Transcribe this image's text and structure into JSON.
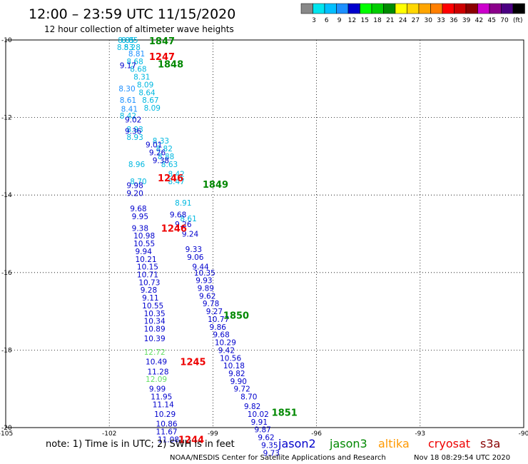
{
  "header": {
    "title": "12:00 – 23:59 UTC 11/15/2020",
    "subtitle": "12 hour collection of altimeter wave heights"
  },
  "color_scale": {
    "colors": [
      "#888888",
      "#00e5ee",
      "#00bfff",
      "#1e90ff",
      "#0000cd",
      "#00ff00",
      "#00cd00",
      "#008b00",
      "#ffff00",
      "#ffd700",
      "#ffa500",
      "#ff7f00",
      "#ff0000",
      "#cd0000",
      "#8b0000",
      "#cd00cd",
      "#8b008b",
      "#4b0082",
      "#000000"
    ],
    "labels": [
      "3",
      "6",
      "9",
      "12",
      "15",
      "18",
      "21",
      "24",
      "27",
      "30",
      "33",
      "36",
      "39",
      "42",
      "45",
      "70"
    ],
    "unit": "(ft)"
  },
  "footer": {
    "note": "note: 1) Time is in UTC; 2) SWH is in feet",
    "credit": "NOAA/NESDIS Center for Satellite Applications and Research",
    "timestamp": "Nov 18 08:29:54 UTC 2020",
    "satellites": [
      {
        "name": "jason2",
        "color": "#0000cc"
      },
      {
        "name": "jason3",
        "color": "#008800"
      },
      {
        "name": "altika",
        "color": "#ff9900"
      },
      {
        "name": "cryosat",
        "color": "#ee0000"
      },
      {
        "name": "s3a",
        "color": "#880000"
      }
    ]
  },
  "chart_data": {
    "type": "scatter",
    "xlim": [
      -105,
      -90
    ],
    "ylim": [
      -20,
      -10
    ],
    "x_ticks": [
      -105,
      -102,
      -99,
      -96,
      -93,
      -90
    ],
    "x_tick_labels": [
      "-105",
      "-102",
      "-99",
      "-96",
      "-93",
      "-90"
    ],
    "y_ticks": [
      -10,
      -12,
      -14,
      -16,
      -18,
      -20
    ],
    "y_tick_labels": [
      "-10",
      "-12",
      "-14",
      "-16",
      "-18",
      "-20"
    ],
    "grid": true,
    "series": [
      {
        "color": "#00b8e0",
        "points": [
          {
            "x": -101.75,
            "y": -10.0,
            "v": "8.85"
          },
          {
            "x": -101.65,
            "y": -10.0,
            "v": "8.85"
          },
          {
            "x": -101.78,
            "y": -10.18,
            "v": "8.53"
          },
          {
            "x": -101.58,
            "y": -10.18,
            "v": "8.28"
          },
          {
            "x": -101.5,
            "y": -10.55,
            "v": "8.68"
          },
          {
            "x": -101.4,
            "y": -10.75,
            "v": "8.68"
          },
          {
            "x": -101.3,
            "y": -10.95,
            "v": "8.31"
          },
          {
            "x": -101.2,
            "y": -11.15,
            "v": "8.09"
          },
          {
            "x": -101.15,
            "y": -11.35,
            "v": "8.64"
          },
          {
            "x": -101.05,
            "y": -11.55,
            "v": "8.67"
          },
          {
            "x": -101.0,
            "y": -11.75,
            "v": "8.09"
          },
          {
            "x": -101.7,
            "y": -11.95,
            "v": "8.42"
          },
          {
            "x": -101.5,
            "y": -12.3,
            "v": "8.93"
          },
          {
            "x": -101.5,
            "y": -12.5,
            "v": "8.93"
          },
          {
            "x": -100.75,
            "y": -12.6,
            "v": "8.33"
          },
          {
            "x": -100.65,
            "y": -12.8,
            "v": "8.82"
          },
          {
            "x": -100.6,
            "y": -13.0,
            "v": "8.88"
          },
          {
            "x": -101.45,
            "y": -13.2,
            "v": "8.96"
          },
          {
            "x": -100.5,
            "y": -13.2,
            "v": "8.63"
          },
          {
            "x": -100.3,
            "y": -13.45,
            "v": "8.42"
          },
          {
            "x": -101.4,
            "y": -13.65,
            "v": "8.70"
          },
          {
            "x": -100.3,
            "y": -13.65,
            "v": "8.47"
          },
          {
            "x": -100.1,
            "y": -14.2,
            "v": "8.91"
          },
          {
            "x": -99.95,
            "y": -14.6,
            "v": "8.61"
          }
        ]
      },
      {
        "color": "#1e90ff",
        "points": [
          {
            "x": -101.45,
            "y": -10.35,
            "v": "8.81"
          },
          {
            "x": -101.73,
            "y": -11.25,
            "v": "8.30"
          },
          {
            "x": -101.7,
            "y": -11.55,
            "v": "8.61"
          },
          {
            "x": -101.66,
            "y": -11.78,
            "v": "8.41"
          }
        ]
      },
      {
        "color": "#0000cd",
        "points": [
          {
            "x": -101.7,
            "y": -10.65,
            "v": "9.17"
          },
          {
            "x": -101.55,
            "y": -12.05,
            "v": "9.02"
          },
          {
            "x": -101.55,
            "y": -12.35,
            "v": "9.36"
          },
          {
            "x": -100.95,
            "y": -12.7,
            "v": "9.01"
          },
          {
            "x": -100.85,
            "y": -12.9,
            "v": "9.26"
          },
          {
            "x": -100.75,
            "y": -13.1,
            "v": "9.38"
          },
          {
            "x": -101.5,
            "y": -13.75,
            "v": "9.98"
          },
          {
            "x": -101.5,
            "y": -13.95,
            "v": "9.20"
          },
          {
            "x": -101.4,
            "y": -14.35,
            "v": "9.68"
          },
          {
            "x": -101.35,
            "y": -14.55,
            "v": "9.95"
          },
          {
            "x": -100.25,
            "y": -14.5,
            "v": "9.68"
          },
          {
            "x": -100.1,
            "y": -14.75,
            "v": "9.26"
          },
          {
            "x": -101.35,
            "y": -14.85,
            "v": "9.38"
          },
          {
            "x": -101.3,
            "y": -15.05,
            "v": "10.98"
          },
          {
            "x": -99.9,
            "y": -15.0,
            "v": "9.24"
          },
          {
            "x": -101.3,
            "y": -15.25,
            "v": "10.55"
          },
          {
            "x": -101.25,
            "y": -15.45,
            "v": "9.94"
          },
          {
            "x": -99.8,
            "y": -15.4,
            "v": "9.33"
          },
          {
            "x": -101.25,
            "y": -15.65,
            "v": "10.21"
          },
          {
            "x": -99.75,
            "y": -15.6,
            "v": "9.06"
          },
          {
            "x": -101.2,
            "y": -15.85,
            "v": "10.15"
          },
          {
            "x": -99.6,
            "y": -15.85,
            "v": "9.44"
          },
          {
            "x": -101.2,
            "y": -16.05,
            "v": "10.71"
          },
          {
            "x": -99.55,
            "y": -16.0,
            "v": "10.35"
          },
          {
            "x": -101.15,
            "y": -16.25,
            "v": "10.73"
          },
          {
            "x": -99.5,
            "y": -16.2,
            "v": "9.93"
          },
          {
            "x": -101.1,
            "y": -16.45,
            "v": "9.28"
          },
          {
            "x": -99.45,
            "y": -16.4,
            "v": "9.89"
          },
          {
            "x": -99.4,
            "y": -16.6,
            "v": "9.62"
          },
          {
            "x": -101.05,
            "y": -16.65,
            "v": "9.11"
          },
          {
            "x": -99.3,
            "y": -16.8,
            "v": "9.78"
          },
          {
            "x": -101.05,
            "y": -16.85,
            "v": "10.55"
          },
          {
            "x": -99.2,
            "y": -17.0,
            "v": "9.27"
          },
          {
            "x": -101.0,
            "y": -17.05,
            "v": "10.35"
          },
          {
            "x": -99.15,
            "y": -17.2,
            "v": "10.77"
          },
          {
            "x": -101.0,
            "y": -17.25,
            "v": "10.34"
          },
          {
            "x": -99.1,
            "y": -17.4,
            "v": "9.86"
          },
          {
            "x": -101.0,
            "y": -17.45,
            "v": "10.89"
          },
          {
            "x": -99.0,
            "y": -17.6,
            "v": "9.68"
          },
          {
            "x": -98.95,
            "y": -17.8,
            "v": "10.29"
          },
          {
            "x": -101.0,
            "y": -17.7,
            "v": "10.39"
          },
          {
            "x": -98.85,
            "y": -18.0,
            "v": "9.42"
          },
          {
            "x": -98.8,
            "y": -18.2,
            "v": "10.56"
          },
          {
            "x": -100.95,
            "y": -18.3,
            "v": "10.49"
          },
          {
            "x": -98.7,
            "y": -18.4,
            "v": "10.18"
          },
          {
            "x": -100.9,
            "y": -18.55,
            "v": "11.28"
          },
          {
            "x": -98.55,
            "y": -18.6,
            "v": "9.82"
          },
          {
            "x": -98.5,
            "y": -18.8,
            "v": "9.90"
          },
          {
            "x": -98.4,
            "y": -19.0,
            "v": "9.72"
          },
          {
            "x": -100.85,
            "y": -19.0,
            "v": "9.99"
          },
          {
            "x": -100.8,
            "y": -19.2,
            "v": "11.95"
          },
          {
            "x": -98.2,
            "y": -19.2,
            "v": "8.70"
          },
          {
            "x": -100.75,
            "y": -19.4,
            "v": "11.14"
          },
          {
            "x": -98.1,
            "y": -19.45,
            "v": "9.82"
          },
          {
            "x": -98.0,
            "y": -19.65,
            "v": "10.02"
          },
          {
            "x": -100.7,
            "y": -19.65,
            "v": "10.29"
          },
          {
            "x": -97.9,
            "y": -19.85,
            "v": "9.91"
          },
          {
            "x": -100.65,
            "y": -19.9,
            "v": "10.86"
          },
          {
            "x": -97.8,
            "y": -20.05,
            "v": "9.87"
          },
          {
            "x": -100.65,
            "y": -20.1,
            "v": "11.67"
          },
          {
            "x": -97.7,
            "y": -20.25,
            "v": "9.62"
          },
          {
            "x": -100.6,
            "y": -20.3,
            "v": "11.08"
          },
          {
            "x": -97.6,
            "y": -20.45,
            "v": "9.35"
          },
          {
            "x": -97.55,
            "y": -20.65,
            "v": "9.73"
          }
        ]
      },
      {
        "color": "#66e066",
        "points": [
          {
            "x": -101.0,
            "y": -18.05,
            "v": "12.72"
          },
          {
            "x": -100.95,
            "y": -18.75,
            "v": "12.09"
          }
        ]
      }
    ],
    "pass_labels": [
      {
        "x": -100.85,
        "y": -10.02,
        "label": "1847",
        "color": "#008800"
      },
      {
        "x": -100.85,
        "y": -10.42,
        "label": "1247",
        "color": "#ee0000"
      },
      {
        "x": -100.6,
        "y": -10.62,
        "label": "1848",
        "color": "#008800"
      },
      {
        "x": -100.6,
        "y": -13.55,
        "label": "1246",
        "color": "#ee0000"
      },
      {
        "x": -99.3,
        "y": -13.72,
        "label": "1849",
        "color": "#008800"
      },
      {
        "x": -100.5,
        "y": -14.85,
        "label": "1246",
        "color": "#ee0000"
      },
      {
        "x": -98.7,
        "y": -17.1,
        "label": "1850",
        "color": "#008800"
      },
      {
        "x": -99.95,
        "y": -18.3,
        "label": "1245",
        "color": "#ee0000"
      },
      {
        "x": -97.3,
        "y": -19.6,
        "label": "1851",
        "color": "#008800"
      },
      {
        "x": -100.0,
        "y": -20.3,
        "label": "1244",
        "color": "#ee0000"
      }
    ]
  }
}
